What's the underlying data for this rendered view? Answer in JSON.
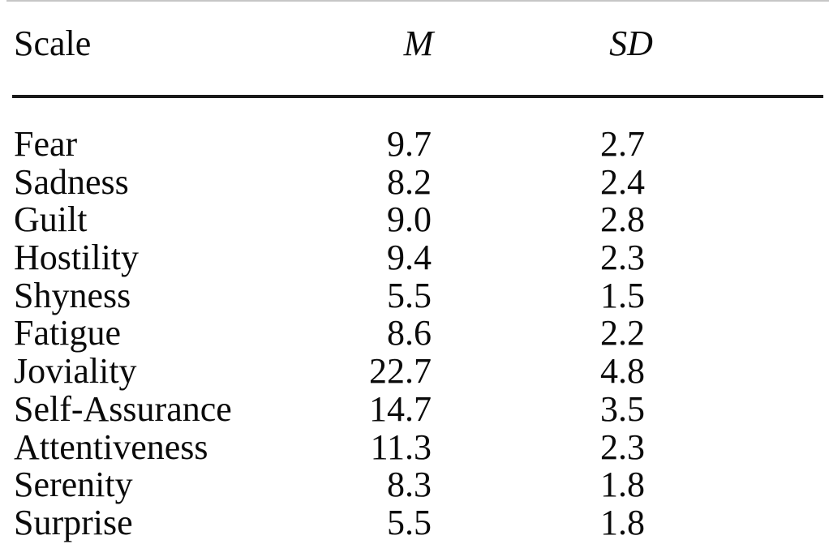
{
  "colors": {
    "background": "#ffffff",
    "text": "#0a0a0a",
    "rule-dark": "#1a1a1a",
    "rule-light": "#c6c6c6"
  },
  "table": {
    "columns": [
      {
        "key": "scale",
        "label": "Scale",
        "italic": false
      },
      {
        "key": "m",
        "label": "M",
        "italic": true
      },
      {
        "key": "sd",
        "label": "SD",
        "italic": true
      }
    ],
    "rows": [
      {
        "scale": "Fear",
        "m": "9.7",
        "sd": "2.7"
      },
      {
        "scale": "Sadness",
        "m": "8.2",
        "sd": "2.4"
      },
      {
        "scale": "Guilt",
        "m": "9.0",
        "sd": "2.8"
      },
      {
        "scale": "Hostility",
        "m": "9.4",
        "sd": "2.3"
      },
      {
        "scale": "Shyness",
        "m": "5.5",
        "sd": "1.5"
      },
      {
        "scale": "Fatigue",
        "m": "8.6",
        "sd": "2.2"
      },
      {
        "scale": "Joviality",
        "m": "22.7",
        "sd": "4.8"
      },
      {
        "scale": "Self-Assurance",
        "m": "14.7",
        "sd": "3.5"
      },
      {
        "scale": "Attentiveness",
        "m": "11.3",
        "sd": "2.3"
      },
      {
        "scale": "Serenity",
        "m": "8.3",
        "sd": "1.8"
      },
      {
        "scale": "Surprise",
        "m": "5.5",
        "sd": "1.8"
      }
    ]
  },
  "chart_data": {
    "type": "table",
    "columns": [
      "Scale",
      "M",
      "SD"
    ],
    "rows": [
      [
        "Fear",
        9.7,
        2.7
      ],
      [
        "Sadness",
        8.2,
        2.4
      ],
      [
        "Guilt",
        9.0,
        2.8
      ],
      [
        "Hostility",
        9.4,
        2.3
      ],
      [
        "Shyness",
        5.5,
        1.5
      ],
      [
        "Fatigue",
        8.6,
        2.2
      ],
      [
        "Joviality",
        22.7,
        4.8
      ],
      [
        "Self-Assurance",
        14.7,
        3.5
      ],
      [
        "Attentiveness",
        11.3,
        2.3
      ],
      [
        "Serenity",
        8.3,
        1.8
      ],
      [
        "Surprise",
        5.5,
        1.8
      ]
    ]
  }
}
